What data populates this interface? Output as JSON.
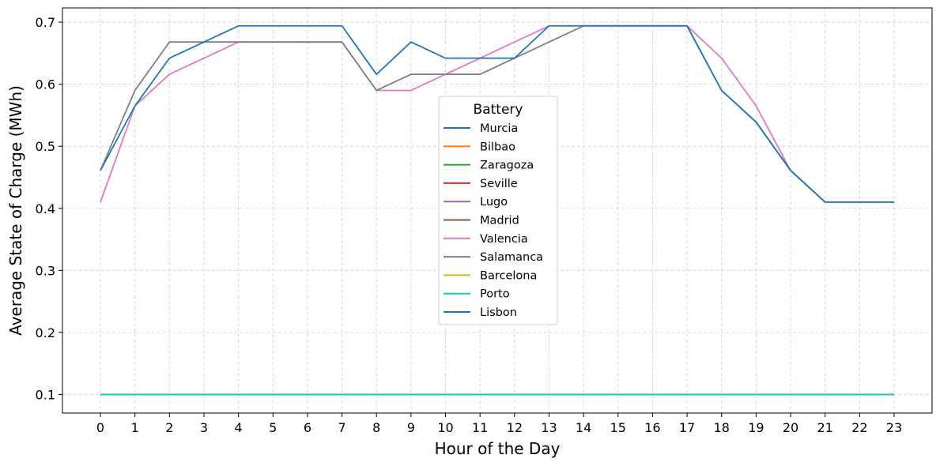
{
  "chart_data": {
    "type": "line",
    "xlabel": "Hour of the Day",
    "ylabel": "Average State of Charge (MWh)",
    "x": [
      0,
      1,
      2,
      3,
      4,
      5,
      6,
      7,
      8,
      9,
      10,
      11,
      12,
      13,
      14,
      15,
      16,
      17,
      18,
      19,
      20,
      21,
      22,
      23
    ],
    "xlim": [
      -1.1,
      24.1
    ],
    "ylim": [
      0.07,
      0.723
    ],
    "yticks": [
      0.1,
      0.2,
      0.3,
      0.4,
      0.5,
      0.6,
      0.7
    ],
    "ytick_labels": [
      "0.1",
      "0.2",
      "0.3",
      "0.4",
      "0.5",
      "0.6",
      "0.7"
    ],
    "grid": true,
    "legend": {
      "title": "Battery",
      "placement": "center"
    },
    "series": [
      {
        "name": "Murcia",
        "color": "#1f77b4",
        "values": [
          0.1,
          0.1,
          0.1,
          0.1,
          0.1,
          0.1,
          0.1,
          0.1,
          0.1,
          0.1,
          0.1,
          0.1,
          0.1,
          0.1,
          0.1,
          0.1,
          0.1,
          0.1,
          0.1,
          0.1,
          0.1,
          0.1,
          0.1,
          0.1
        ]
      },
      {
        "name": "Bilbao",
        "color": "#ff7f0e",
        "values": [
          0.1,
          0.1,
          0.1,
          0.1,
          0.1,
          0.1,
          0.1,
          0.1,
          0.1,
          0.1,
          0.1,
          0.1,
          0.1,
          0.1,
          0.1,
          0.1,
          0.1,
          0.1,
          0.1,
          0.1,
          0.1,
          0.1,
          0.1,
          0.1
        ]
      },
      {
        "name": "Zaragoza",
        "color": "#2ca02c",
        "values": [
          0.1,
          0.1,
          0.1,
          0.1,
          0.1,
          0.1,
          0.1,
          0.1,
          0.1,
          0.1,
          0.1,
          0.1,
          0.1,
          0.1,
          0.1,
          0.1,
          0.1,
          0.1,
          0.1,
          0.1,
          0.1,
          0.1,
          0.1,
          0.1
        ]
      },
      {
        "name": "Seville",
        "color": "#d62728",
        "values": [
          0.1,
          0.1,
          0.1,
          0.1,
          0.1,
          0.1,
          0.1,
          0.1,
          0.1,
          0.1,
          0.1,
          0.1,
          0.1,
          0.1,
          0.1,
          0.1,
          0.1,
          0.1,
          0.1,
          0.1,
          0.1,
          0.1,
          0.1,
          0.1
        ]
      },
      {
        "name": "Lugo",
        "color": "#9467bd",
        "values": [
          0.1,
          0.1,
          0.1,
          0.1,
          0.1,
          0.1,
          0.1,
          0.1,
          0.1,
          0.1,
          0.1,
          0.1,
          0.1,
          0.1,
          0.1,
          0.1,
          0.1,
          0.1,
          0.1,
          0.1,
          0.1,
          0.1,
          0.1,
          0.1
        ]
      },
      {
        "name": "Madrid",
        "color": "#8c564b",
        "values": [
          0.1,
          0.1,
          0.1,
          0.1,
          0.1,
          0.1,
          0.1,
          0.1,
          0.1,
          0.1,
          0.1,
          0.1,
          0.1,
          0.1,
          0.1,
          0.1,
          0.1,
          0.1,
          0.1,
          0.1,
          0.1,
          0.1,
          0.1,
          0.1
        ]
      },
      {
        "name": "Valencia",
        "color": "#e377c2",
        "values": [
          0.41,
          0.565,
          0.616,
          0.642,
          0.668,
          0.668,
          0.668,
          0.668,
          0.59,
          0.59,
          0.616,
          0.642,
          0.668,
          0.694,
          0.694,
          0.694,
          0.694,
          0.694,
          0.642,
          0.565,
          0.461,
          0.41,
          0.41,
          0.41
        ]
      },
      {
        "name": "Salamanca",
        "color": "#7f7f7f",
        "values": [
          0.461,
          0.59,
          0.668,
          0.668,
          0.668,
          0.668,
          0.668,
          0.668,
          0.59,
          0.616,
          0.616,
          0.616,
          0.642,
          0.668,
          0.694,
          0.694,
          0.694,
          0.694,
          0.59,
          0.539,
          0.461,
          0.41,
          0.41,
          0.41
        ]
      },
      {
        "name": "Barcelona",
        "color": "#bcbd22",
        "values": [
          0.1,
          0.1,
          0.1,
          0.1,
          0.1,
          0.1,
          0.1,
          0.1,
          0.1,
          0.1,
          0.1,
          0.1,
          0.1,
          0.1,
          0.1,
          0.1,
          0.1,
          0.1,
          0.1,
          0.1,
          0.1,
          0.1,
          0.1,
          0.1
        ]
      },
      {
        "name": "Porto",
        "color": "#17becf",
        "values": [
          0.1,
          0.1,
          0.1,
          0.1,
          0.1,
          0.1,
          0.1,
          0.1,
          0.1,
          0.1,
          0.1,
          0.1,
          0.1,
          0.1,
          0.1,
          0.1,
          0.1,
          0.1,
          0.1,
          0.1,
          0.1,
          0.1,
          0.1,
          0.1
        ]
      },
      {
        "name": "Lisbon",
        "color": "#1f77b4",
        "values": [
          0.461,
          0.565,
          0.642,
          0.668,
          0.694,
          0.694,
          0.694,
          0.694,
          0.616,
          0.668,
          0.642,
          0.642,
          0.642,
          0.694,
          0.694,
          0.694,
          0.694,
          0.694,
          0.59,
          0.539,
          0.461,
          0.41,
          0.41,
          0.41
        ]
      }
    ]
  }
}
